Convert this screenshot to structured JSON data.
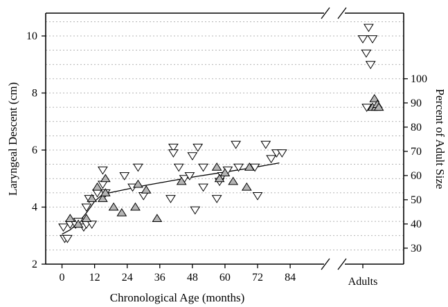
{
  "chart_data": {
    "type": "scatter",
    "title": "",
    "xlabel": "Chronological Age (months)",
    "ylabel": "Laryngeal Descent (cm)",
    "ylabel_right": "Percent of Adult Size",
    "xlim": [
      -6,
      98
    ],
    "ylim": [
      2,
      10.8
    ],
    "x_ticks": [
      0,
      12,
      24,
      36,
      48,
      60,
      72,
      84
    ],
    "y_ticks": [
      2,
      4,
      6,
      8,
      10
    ],
    "right_ticks": [
      30,
      40,
      50,
      60,
      70,
      80,
      90,
      100
    ],
    "right_axis_scale": {
      "value_at_2cm": 23.4,
      "value_at_8cm": 94.1
    },
    "adults_label": "Adults",
    "grid": "horizontal dashed",
    "colors": {
      "down_marker": "#ffffff",
      "up_marker": "#b5b5b5",
      "stroke": "#000000"
    },
    "series": [
      {
        "marker": "triangle-down",
        "points": [
          [
            0.5,
            3.3
          ],
          [
            1,
            2.9
          ],
          [
            2,
            2.9
          ],
          [
            3,
            3.4
          ],
          [
            5,
            3.4
          ],
          [
            6,
            3.5
          ],
          [
            8,
            3.3
          ],
          [
            9,
            3.4
          ],
          [
            11,
            3.4
          ],
          [
            10,
            4.3
          ],
          [
            9,
            4.0
          ],
          [
            13,
            4.5
          ],
          [
            15,
            5.3
          ],
          [
            15,
            4.8
          ],
          [
            16,
            4.5
          ],
          [
            23,
            5.1
          ],
          [
            26,
            4.7
          ],
          [
            28,
            5.4
          ],
          [
            30,
            4.4
          ],
          [
            40,
            4.3
          ],
          [
            41,
            6.1
          ],
          [
            41,
            5.9
          ],
          [
            43,
            5.4
          ],
          [
            45,
            5.0
          ],
          [
            47,
            5.1
          ],
          [
            48,
            5.8
          ],
          [
            49,
            3.9
          ],
          [
            50,
            6.1
          ],
          [
            52,
            5.4
          ],
          [
            52,
            4.7
          ],
          [
            57,
            4.3
          ],
          [
            58,
            4.9
          ],
          [
            59,
            5.1
          ],
          [
            61,
            5.3
          ],
          [
            64,
            6.2
          ],
          [
            65,
            5.4
          ],
          [
            71,
            5.4
          ],
          [
            72,
            4.4
          ],
          [
            75,
            6.2
          ],
          [
            77,
            5.7
          ],
          [
            79,
            5.9
          ],
          [
            81,
            5.9
          ]
        ],
        "adults_points": [
          [
            0,
            9.9
          ],
          [
            0.35,
            9.4
          ],
          [
            0.6,
            10.3
          ],
          [
            0.8,
            9.0
          ],
          [
            1.0,
            9.9
          ],
          [
            0.4,
            7.5
          ]
        ]
      },
      {
        "marker": "triangle-up",
        "points": [
          [
            3,
            3.6
          ],
          [
            6,
            3.4
          ],
          [
            9,
            3.6
          ],
          [
            11,
            4.3
          ],
          [
            13,
            4.7
          ],
          [
            15,
            4.3
          ],
          [
            16,
            4.5
          ],
          [
            16,
            5.0
          ],
          [
            19,
            4.0
          ],
          [
            22,
            3.8
          ],
          [
            27,
            4.0
          ],
          [
            28,
            4.8
          ],
          [
            31,
            4.6
          ],
          [
            35,
            3.6
          ],
          [
            44,
            4.9
          ],
          [
            57,
            5.4
          ],
          [
            58,
            5.0
          ],
          [
            60,
            5.2
          ],
          [
            63,
            4.9
          ],
          [
            68,
            4.7
          ],
          [
            69,
            5.4
          ]
        ],
        "adults_points": [
          [
            1.0,
            7.5
          ],
          [
            1.2,
            7.8
          ],
          [
            1.35,
            7.5
          ],
          [
            1.5,
            7.6
          ],
          [
            1.65,
            7.5
          ]
        ]
      }
    ],
    "trend_line": {
      "x": [
        0,
        3,
        6,
        9,
        12,
        15,
        20,
        30,
        40,
        50,
        60,
        70,
        80
      ],
      "y": [
        3.05,
        3.2,
        3.45,
        3.8,
        4.2,
        4.45,
        4.55,
        4.75,
        4.92,
        5.08,
        5.23,
        5.38,
        5.55
      ]
    }
  }
}
